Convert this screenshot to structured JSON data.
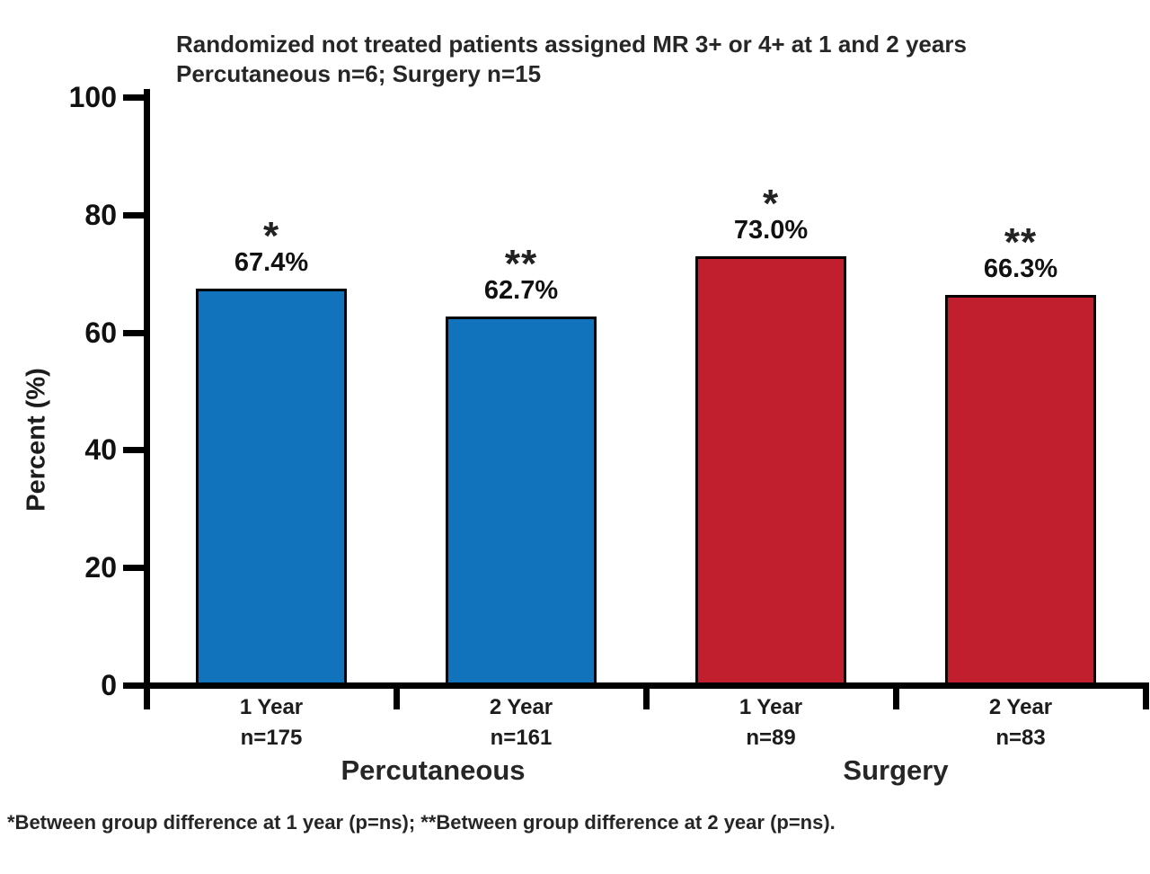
{
  "title": {
    "line1": "Randomized not treated patients assigned MR 3+ or 4+ at 1 and 2 years",
    "line2": "Percutaneous n=6; Surgery n=15"
  },
  "footnote": "*Between group difference at 1 year (p=ns); **Between group difference at 2 year (p=ns).",
  "colors": {
    "percutaneous_bar": "#1273BD",
    "surgery_bar": "#C11F2E",
    "bar_border": "#000000",
    "axis": "#000000",
    "text": "#1c1c1c"
  },
  "chart_data": {
    "type": "bar",
    "title": "Randomized not treated patients assigned MR 3+ or 4+ at 1 and 2 years",
    "subtitle": "Percutaneous n=6; Surgery n=15",
    "ylabel": "Percent (%)",
    "ylim": [
      0,
      100
    ],
    "yticks": [
      0,
      20,
      40,
      60,
      80,
      100
    ],
    "grid": false,
    "legend": "none",
    "groups": [
      {
        "label": "Percutaneous",
        "color": "#1273BD",
        "bars": [
          {
            "category": "1 Year",
            "n_label": "n=175",
            "value": 67.4,
            "value_label": "67.4%",
            "sig_marker": "*"
          },
          {
            "category": "2 Year",
            "n_label": "n=161",
            "value": 62.7,
            "value_label": "62.7%",
            "sig_marker": "**"
          }
        ]
      },
      {
        "label": "Surgery",
        "color": "#C11F2E",
        "bars": [
          {
            "category": "1 Year",
            "n_label": "n=89",
            "value": 73.0,
            "value_label": "73.0%",
            "sig_marker": "*"
          },
          {
            "category": "2 Year",
            "n_label": "n=83",
            "value": 66.3,
            "value_label": "66.3%",
            "sig_marker": "**"
          }
        ]
      }
    ]
  }
}
